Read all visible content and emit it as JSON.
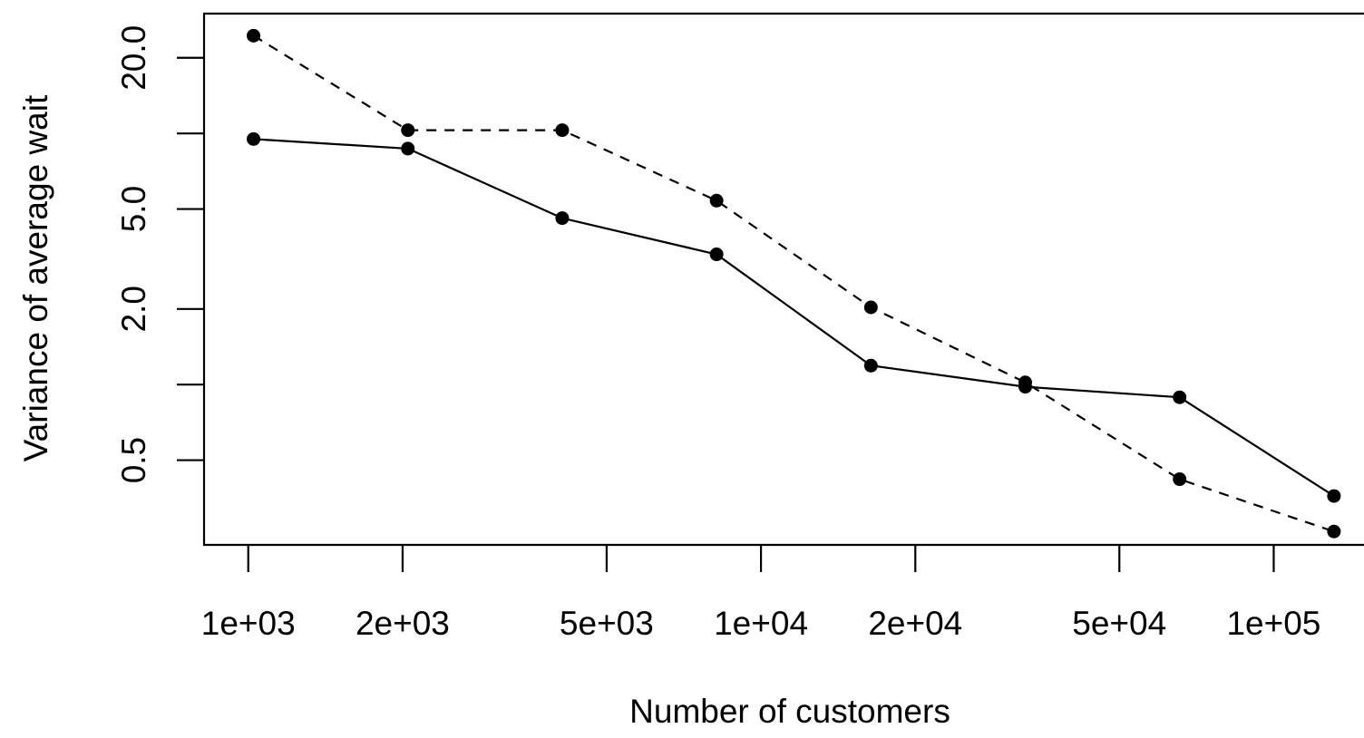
{
  "chart_data": {
    "type": "line",
    "title": "",
    "xlabel": "Number of customers",
    "ylabel": "Variance of average wait",
    "x_scale": "log",
    "y_scale": "log",
    "x_ticks": [
      1000,
      2000,
      5000,
      10000,
      20000,
      50000,
      100000
    ],
    "x_tick_labels": [
      "1e+03",
      "2e+03",
      "5e+03",
      "1e+04",
      "2e+04",
      "5e+04",
      "1e+05"
    ],
    "y_ticks": [
      0.5,
      1,
      2,
      5,
      10,
      20
    ],
    "y_tick_labels": [
      "0.5",
      "",
      "2.0",
      "5.0",
      "",
      "20.0"
    ],
    "xlim": [
      820,
      150000
    ],
    "ylim": [
      0.23,
      30
    ],
    "grid": false,
    "legend": "none",
    "x": [
      1024,
      2048,
      4096,
      8192,
      16384,
      32768,
      65536,
      131072
    ],
    "series": [
      {
        "line_style": "solid",
        "color": "#000000",
        "values": [
          9.5,
          8.7,
          4.6,
          3.3,
          1.19,
          0.98,
          0.89,
          0.36
        ]
      },
      {
        "line_style": "dashed",
        "color": "#000000",
        "values": [
          24.5,
          10.3,
          10.3,
          5.4,
          2.03,
          1.02,
          0.42,
          0.26
        ]
      }
    ]
  }
}
